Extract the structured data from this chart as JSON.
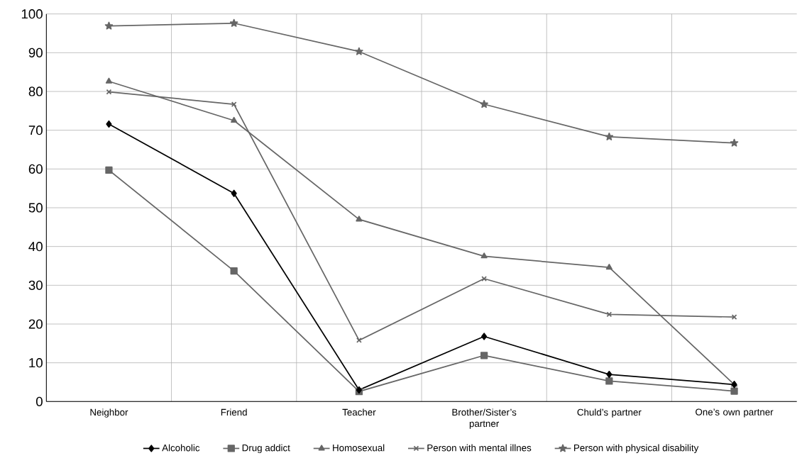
{
  "chart_data": {
    "type": "line",
    "categories": [
      "Neighbor",
      "Friend",
      "Teacher",
      "Brother/Sister’s partner",
      "Chuld’s partner",
      "One’s own partner"
    ],
    "series": [
      {
        "name": "Alcoholic",
        "color": "#000000",
        "marker": "diamond",
        "values": [
          71.6,
          53.7,
          3,
          16.8,
          7,
          4.4
        ]
      },
      {
        "name": "Drug addict",
        "color": "#666666",
        "marker": "square",
        "values": [
          59.7,
          33.7,
          2.6,
          11.9,
          5.3,
          2.7
        ]
      },
      {
        "name": "Homosexual",
        "color": "#666666",
        "marker": "triangle",
        "values": [
          82.6,
          72.5,
          47,
          37.5,
          34.6,
          4.4
        ]
      },
      {
        "name": "Person with mental illnes",
        "color": "#666666",
        "marker": "cross",
        "values": [
          79.9,
          76.7,
          15.8,
          31.7,
          22.5,
          21.8
        ]
      },
      {
        "name": "Person with physical disability",
        "color": "#666666",
        "marker": "star",
        "values": [
          96.9,
          97.6,
          90.3,
          76.7,
          68.3,
          66.7
        ]
      }
    ],
    "ylim": [
      0,
      100
    ],
    "yticks": [
      0,
      10,
      20,
      30,
      40,
      50,
      60,
      70,
      80,
      90,
      100
    ],
    "grid": true,
    "legend": "bottom",
    "line_style": "solid"
  }
}
